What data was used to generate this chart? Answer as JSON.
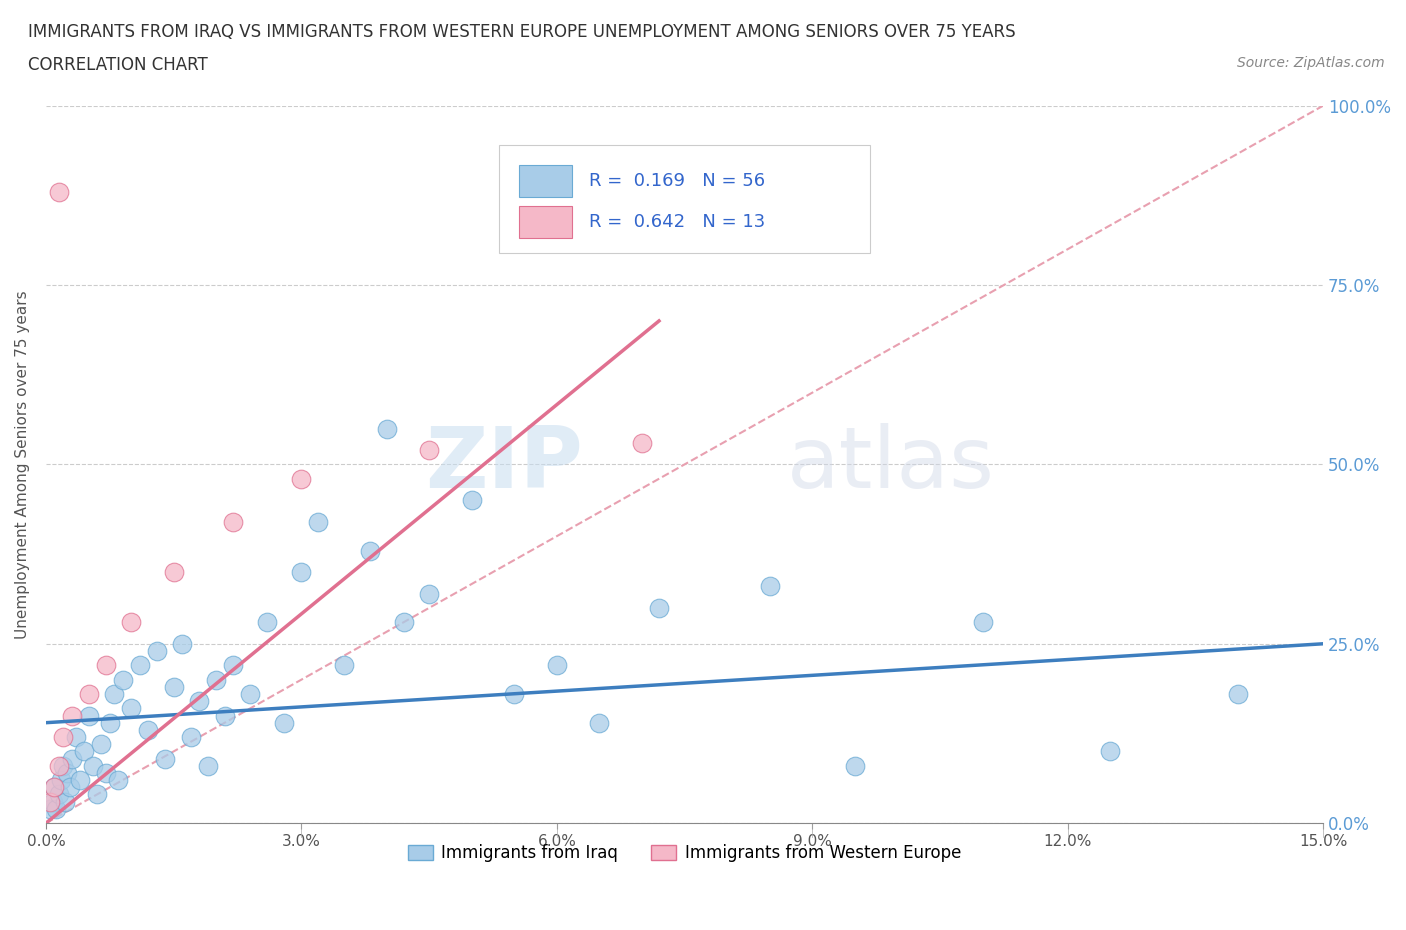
{
  "title_line1": "IMMIGRANTS FROM IRAQ VS IMMIGRANTS FROM WESTERN EUROPE UNEMPLOYMENT AMONG SENIORS OVER 75 YEARS",
  "title_line2": "CORRELATION CHART",
  "source_text": "Source: ZipAtlas.com",
  "ylabel": "Unemployment Among Seniors over 75 years",
  "xlim": [
    0,
    15
  ],
  "ylim": [
    0,
    100
  ],
  "xtick_vals": [
    0,
    3,
    6,
    9,
    12,
    15
  ],
  "ytick_vals": [
    0,
    25,
    50,
    75,
    100
  ],
  "iraq_color": "#a8cce8",
  "iraq_color_edge": "#6aaad4",
  "iraq_line_color": "#3d7ebf",
  "we_color": "#f5b8c8",
  "we_color_edge": "#e07090",
  "we_line_color": "#e07090",
  "ref_line_color": "#e8a0b0",
  "grid_color": "#cccccc",
  "right_tick_color": "#5b9bd5",
  "iraq_R": 0.169,
  "iraq_N": 56,
  "we_R": 0.642,
  "we_N": 13,
  "legend_label_iraq": "Immigrants from Iraq",
  "legend_label_we": "Immigrants from Western Europe",
  "watermark": "ZIPatlas",
  "background_color": "#ffffff",
  "iraq_x": [
    0.05,
    0.08,
    0.1,
    0.12,
    0.15,
    0.18,
    0.2,
    0.22,
    0.25,
    0.28,
    0.3,
    0.35,
    0.4,
    0.45,
    0.5,
    0.55,
    0.6,
    0.65,
    0.7,
    0.75,
    0.8,
    0.85,
    0.9,
    1.0,
    1.1,
    1.2,
    1.3,
    1.4,
    1.5,
    1.6,
    1.7,
    1.8,
    1.9,
    2.0,
    2.1,
    2.2,
    2.4,
    2.6,
    2.8,
    3.0,
    3.2,
    3.5,
    3.8,
    4.0,
    4.2,
    4.5,
    5.0,
    5.5,
    6.0,
    6.5,
    7.2,
    8.5,
    9.5,
    11.0,
    12.5,
    14.0
  ],
  "iraq_y": [
    2,
    3,
    5,
    2,
    4,
    6,
    8,
    3,
    7,
    5,
    9,
    12,
    6,
    10,
    15,
    8,
    4,
    11,
    7,
    14,
    18,
    6,
    20,
    16,
    22,
    13,
    24,
    9,
    19,
    25,
    12,
    17,
    8,
    20,
    15,
    22,
    18,
    28,
    14,
    35,
    42,
    22,
    38,
    55,
    28,
    32,
    45,
    18,
    22,
    14,
    30,
    33,
    8,
    28,
    10,
    18
  ],
  "we_x": [
    0.05,
    0.1,
    0.15,
    0.2,
    0.3,
    0.5,
    0.7,
    1.0,
    1.5,
    2.2,
    3.0,
    4.5,
    7.0
  ],
  "we_y": [
    3,
    5,
    8,
    12,
    15,
    18,
    22,
    28,
    35,
    42,
    48,
    52,
    53
  ],
  "we_outlier_x": 0.15,
  "we_outlier_y": 88,
  "iraq_trend_x0": 0,
  "iraq_trend_y0": 14,
  "iraq_trend_x1": 15,
  "iraq_trend_y1": 25,
  "we_trend_x0": 0,
  "we_trend_y0": 0,
  "we_trend_x1": 7.2,
  "we_trend_y1": 70
}
